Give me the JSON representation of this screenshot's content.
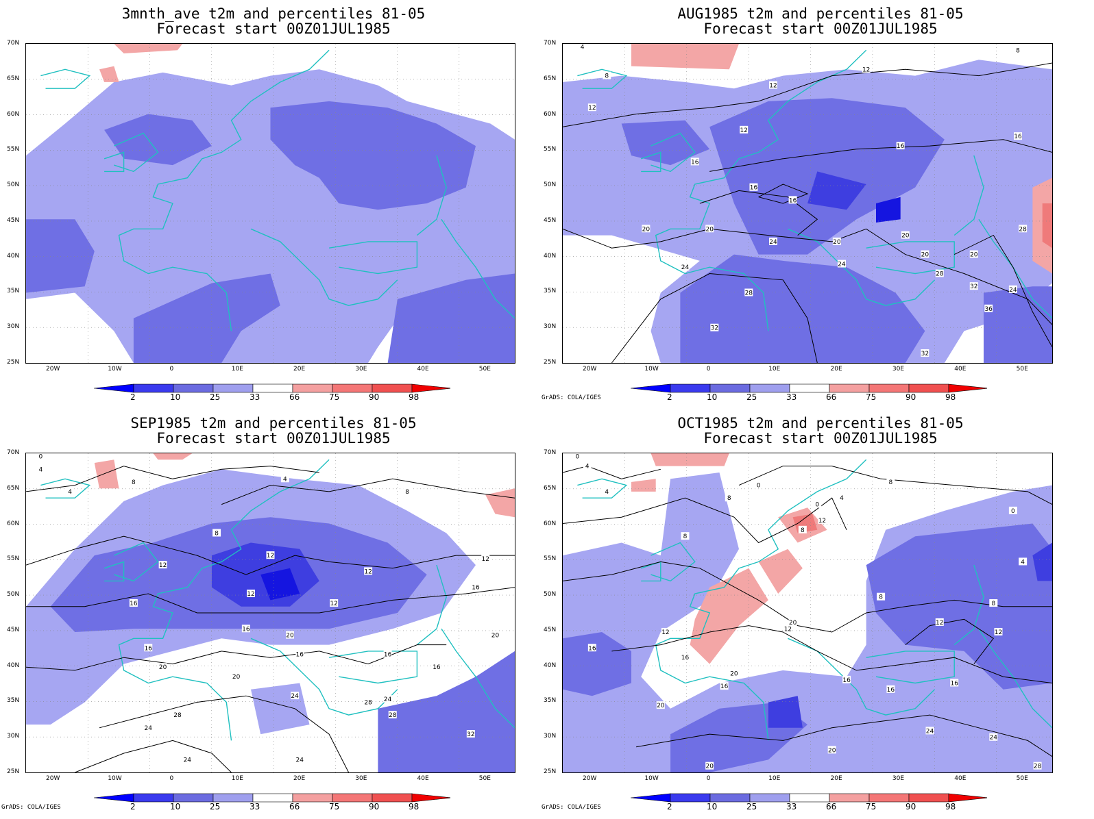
{
  "panels": [
    {
      "title_line1": "3mnth_ave t2m and percentiles 81-05",
      "title_line2": "Forecast start 00Z01JUL1985",
      "credit": "",
      "contour_labels": []
    },
    {
      "title_line1": "AUG1985 t2m and percentiles 81-05",
      "title_line2": "Forecast start 00Z01JUL1985",
      "credit": "GrADS: COLA/IGES",
      "contour_labels": [
        "4",
        "8",
        "12",
        "12",
        "12",
        "12",
        "16",
        "16",
        "16",
        "16",
        "16",
        "20",
        "20",
        "20",
        "20",
        "20",
        "24",
        "24",
        "24",
        "28",
        "28",
        "28",
        "32",
        "32",
        "32",
        "36",
        "8",
        "20",
        "24"
      ]
    },
    {
      "title_line1": "SEP1985 t2m and percentiles 81-05",
      "title_line2": "Forecast start 00Z01JUL1985",
      "credit": "GrADS: COLA/IGES",
      "contour_labels": [
        "0",
        "4",
        "4",
        "8",
        "4",
        "8",
        "8",
        "12",
        "12",
        "12",
        "12",
        "12",
        "12",
        "16",
        "16",
        "16",
        "16",
        "16",
        "16",
        "20",
        "20",
        "20",
        "20",
        "24",
        "24",
        "24",
        "24",
        "24",
        "28",
        "28",
        "28",
        "32",
        "16"
      ]
    },
    {
      "title_line1": "OCT1985 t2m and percentiles 81-05",
      "title_line2": "Forecast start 00Z01JUL1985",
      "credit": "GrADS: COLA/IGES",
      "contour_labels": [
        "0",
        "4",
        "4",
        "0",
        "8",
        "8",
        "8",
        "0",
        "0",
        "8",
        "4",
        "12",
        "12",
        "12",
        "12",
        "12",
        "8",
        "8",
        "4",
        "16",
        "16",
        "16",
        "16",
        "16",
        "20",
        "20",
        "20",
        "20",
        "24",
        "24",
        "28",
        "16",
        "20"
      ]
    }
  ],
  "lat_labels": [
    "70N",
    "65N",
    "60N",
    "55N",
    "50N",
    "45N",
    "40N",
    "35N",
    "30N",
    "25N"
  ],
  "lon_labels": [
    "20W",
    "10W",
    "0",
    "10E",
    "20E",
    "30E",
    "40E",
    "50E"
  ],
  "colorbar": {
    "labels": [
      "2",
      "10",
      "25",
      "33",
      "66",
      "75",
      "90",
      "98"
    ],
    "colors": [
      "#0000ff",
      "#3a3aee",
      "#6b6be0",
      "#9f9fee",
      "#ffffff",
      "#f4a0a0",
      "#f47676",
      "#f05050",
      "#f00000"
    ]
  },
  "colors": {
    "light_blue": "#a6a6f2",
    "mid_blue": "#6f6fe4",
    "dark_blue": "#3e3ee0",
    "deep_blue": "#1515e0",
    "light_red": "#f3a6a6",
    "mid_red": "#ef7a7a",
    "coast": "#20c0c0",
    "contour": "#000000"
  }
}
